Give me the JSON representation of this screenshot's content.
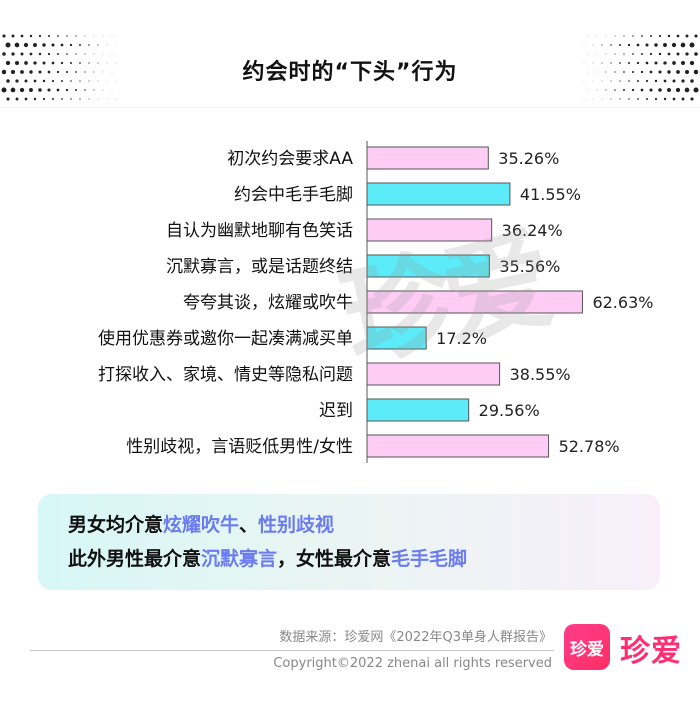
{
  "title": "约会时的“下头”行为",
  "chart_data": {
    "type": "bar",
    "orientation": "horizontal",
    "categories": [
      "初次约会要求AA",
      "约会中毛手毛脚",
      "自认为幽默地聊有色笑话",
      "沉默寡言，或是话题终结",
      "夸夸其谈，炫耀或吹牛",
      "使用优惠券或邀你一起凑满减买单",
      "打探收入、家境、情史等隐私问题",
      "迟到",
      "性别歧视，言语贬低男性/女性"
    ],
    "values": [
      35.26,
      41.55,
      36.24,
      35.56,
      62.63,
      17.2,
      38.55,
      29.56,
      52.78
    ],
    "value_labels": [
      "35.26%",
      "41.55%",
      "36.24%",
      "35.56%",
      "62.63%",
      "17.2%",
      "38.55%",
      "29.56%",
      "52.78%"
    ],
    "bar_colors": [
      "#ffccf6",
      "#5cebf8",
      "#ffccf6",
      "#5cebf8",
      "#ffccf6",
      "#5cebf8",
      "#ffccf6",
      "#5cebf8",
      "#ffccf6"
    ],
    "xlim": [
      0,
      70
    ],
    "grid": false
  },
  "watermark": "珍爱",
  "callout": {
    "line1_prefix": "男女均介意",
    "line1_hl1": "炫耀吹牛",
    "line1_sep": "、",
    "line1_hl2": "性别歧视",
    "line2_prefix": "此外男性最介意",
    "line2_hl1": "沉默寡言",
    "line2_mid": "，女性最介意",
    "line2_hl2": "毛手毛脚",
    "highlight_color": "#6a7cf0"
  },
  "footer": {
    "source": "数据来源：珍爱网《2022年Q3单身人群报告》",
    "copyright": "Copyright©2022  zhenai  all rights reserved",
    "logo_box_text": "珍爱",
    "logo_text": "珍爱"
  }
}
